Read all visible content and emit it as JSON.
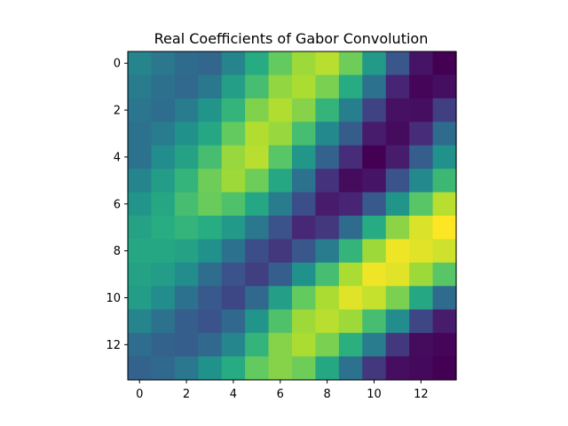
{
  "chart_data": {
    "type": "heatmap",
    "title": "Real Coefficients of Gabor Convolution",
    "xlabel": "",
    "ylabel": "",
    "colormap": "viridis",
    "rows": 14,
    "cols": 14,
    "xlim": [
      -0.5,
      13.5
    ],
    "ylim": [
      13.5,
      -0.5
    ],
    "xticks": [
      0,
      2,
      4,
      6,
      8,
      10,
      12
    ],
    "yticks": [
      0,
      2,
      4,
      6,
      8,
      10,
      12
    ],
    "xtick_labels": [
      "0",
      "2",
      "4",
      "6",
      "8",
      "10",
      "12"
    ],
    "ytick_labels": [
      "0",
      "2",
      "4",
      "6",
      "8",
      "10",
      "12"
    ],
    "grid": false,
    "values": [
      [
        0.45,
        0.4,
        0.35,
        0.33,
        0.45,
        0.62,
        0.76,
        0.86,
        0.9,
        0.78,
        0.54,
        0.27,
        0.07,
        0.0
      ],
      [
        0.42,
        0.37,
        0.34,
        0.4,
        0.56,
        0.7,
        0.84,
        0.88,
        0.8,
        0.62,
        0.38,
        0.13,
        0.02,
        0.05
      ],
      [
        0.39,
        0.36,
        0.42,
        0.52,
        0.66,
        0.81,
        0.89,
        0.82,
        0.66,
        0.43,
        0.21,
        0.06,
        0.05,
        0.2
      ],
      [
        0.38,
        0.42,
        0.5,
        0.6,
        0.76,
        0.89,
        0.85,
        0.7,
        0.47,
        0.29,
        0.1,
        0.04,
        0.15,
        0.35
      ],
      [
        0.38,
        0.48,
        0.58,
        0.7,
        0.85,
        0.9,
        0.74,
        0.53,
        0.32,
        0.15,
        0.0,
        0.1,
        0.3,
        0.5
      ],
      [
        0.45,
        0.55,
        0.66,
        0.78,
        0.86,
        0.78,
        0.6,
        0.38,
        0.17,
        0.04,
        0.07,
        0.26,
        0.47,
        0.68
      ],
      [
        0.52,
        0.6,
        0.7,
        0.77,
        0.72,
        0.6,
        0.42,
        0.24,
        0.1,
        0.13,
        0.28,
        0.52,
        0.74,
        0.9
      ],
      [
        0.58,
        0.63,
        0.66,
        0.63,
        0.54,
        0.4,
        0.25,
        0.14,
        0.18,
        0.35,
        0.62,
        0.83,
        0.95,
        1.0
      ],
      [
        0.6,
        0.6,
        0.58,
        0.5,
        0.38,
        0.24,
        0.18,
        0.27,
        0.42,
        0.66,
        0.86,
        0.98,
        0.96,
        0.93
      ],
      [
        0.58,
        0.55,
        0.48,
        0.36,
        0.25,
        0.2,
        0.3,
        0.5,
        0.7,
        0.88,
        0.98,
        0.96,
        0.86,
        0.74
      ],
      [
        0.55,
        0.48,
        0.38,
        0.28,
        0.22,
        0.34,
        0.56,
        0.76,
        0.88,
        0.96,
        0.92,
        0.8,
        0.6,
        0.35
      ],
      [
        0.45,
        0.38,
        0.3,
        0.26,
        0.34,
        0.52,
        0.72,
        0.86,
        0.9,
        0.86,
        0.7,
        0.48,
        0.22,
        0.1
      ],
      [
        0.36,
        0.32,
        0.3,
        0.34,
        0.46,
        0.66,
        0.82,
        0.88,
        0.8,
        0.64,
        0.42,
        0.18,
        0.04,
        0.02
      ],
      [
        0.32,
        0.34,
        0.4,
        0.5,
        0.62,
        0.76,
        0.82,
        0.78,
        0.6,
        0.38,
        0.18,
        0.05,
        0.03,
        0.0
      ]
    ]
  }
}
